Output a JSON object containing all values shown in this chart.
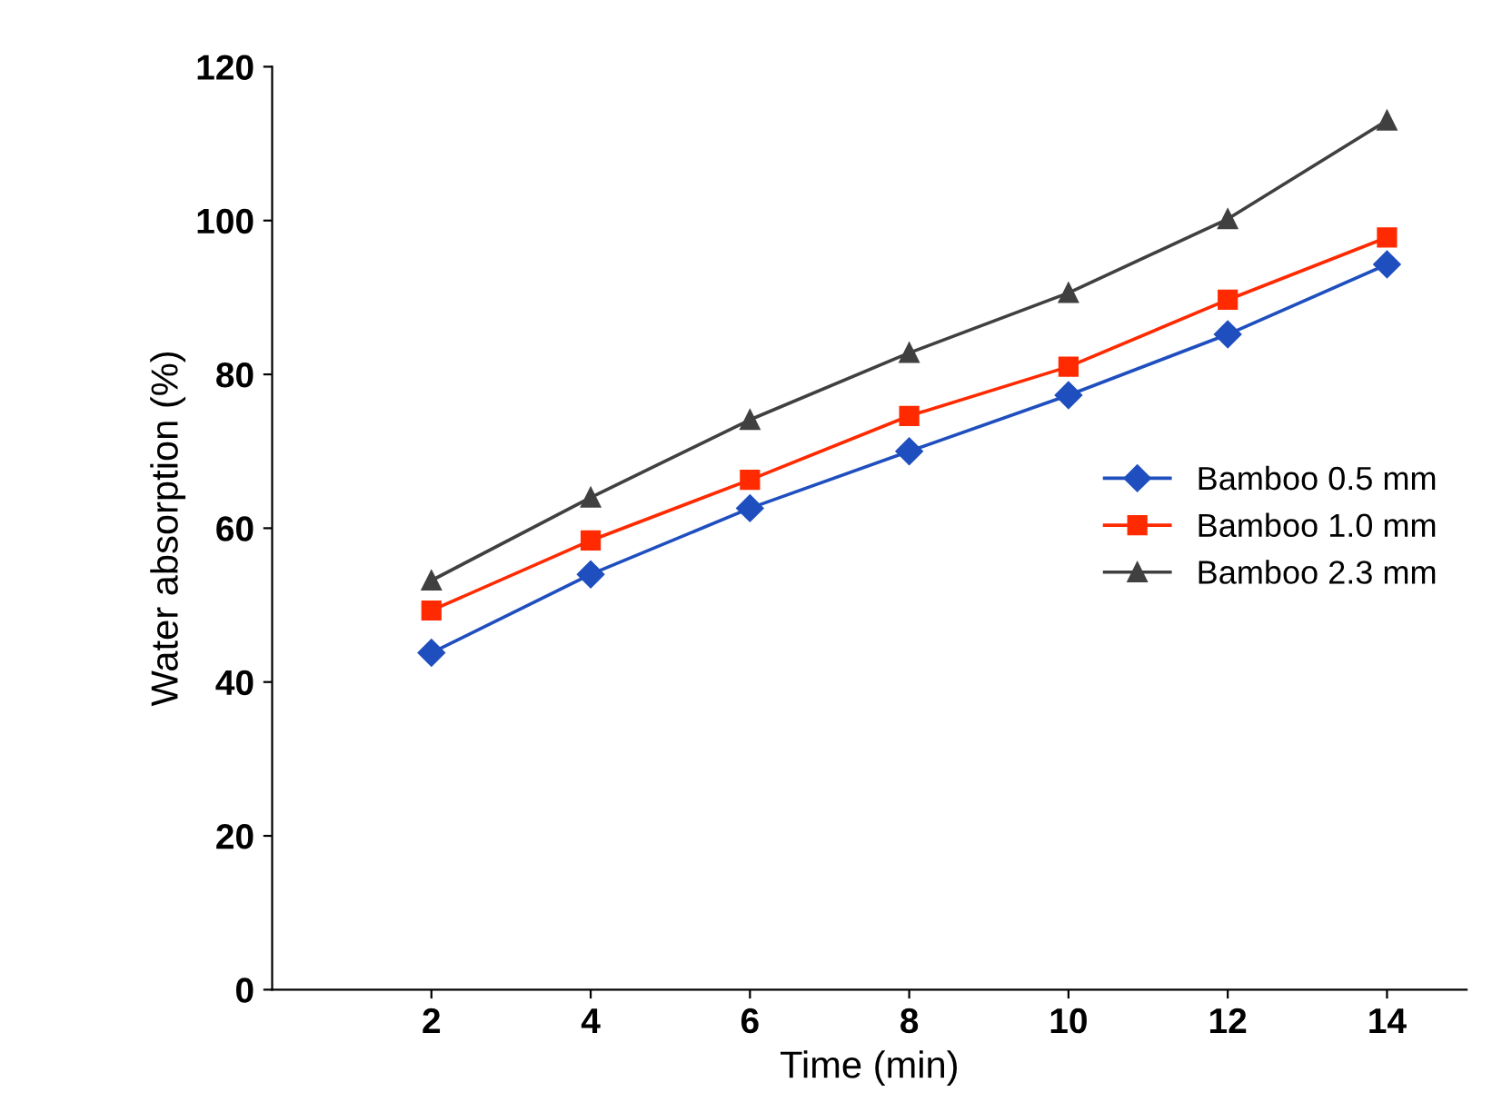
{
  "chart_data": {
    "type": "line",
    "xlabel": "Time (min)",
    "ylabel": "Water absorption (%)",
    "x": [
      2,
      4,
      6,
      8,
      10,
      12,
      14
    ],
    "xlim": [
      0,
      15
    ],
    "xticks": [
      2,
      4,
      6,
      8,
      10,
      12,
      14
    ],
    "ylim": [
      0,
      120
    ],
    "yticks": [
      0,
      20,
      40,
      60,
      80,
      100,
      120
    ],
    "grid": false,
    "legend": "right",
    "series": [
      {
        "name": "Bamboo 0.5 mm",
        "color": "#1f4fbf",
        "marker": "diamond",
        "values": [
          43.8,
          54,
          62.6,
          70,
          77.3,
          85.2,
          94.3
        ]
      },
      {
        "name": "Bamboo 1.0 mm",
        "color": "#ff2a00",
        "marker": "square",
        "values": [
          49.3,
          58.4,
          66.3,
          74.6,
          81,
          89.7,
          97.8
        ]
      },
      {
        "name": "Bamboo 2.3 mm",
        "color": "#404040",
        "marker": "triangle",
        "values": [
          53.2,
          64,
          74.1,
          82.8,
          90.6,
          100.2,
          113
        ]
      }
    ]
  }
}
